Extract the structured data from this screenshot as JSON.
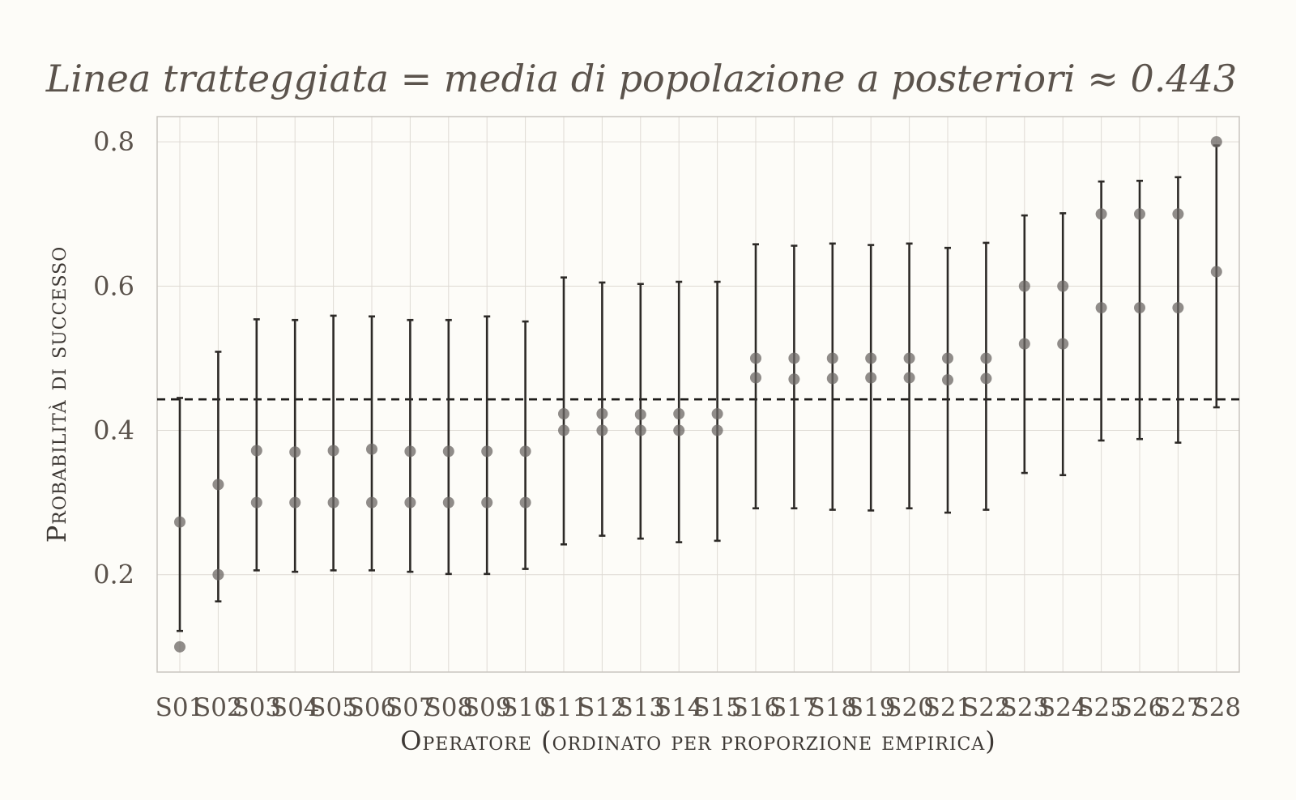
{
  "chart_data": {
    "type": "scatter",
    "title": "Linea tratteggiata = media di popolazione a posteriori ≈ 0.443",
    "xlabel": "Operatore (ordinato per proporzione empirica)",
    "ylabel": "Probabilità di successo",
    "ylim": [
      0.065,
      0.835
    ],
    "yticks": [
      0.2,
      0.4,
      0.6,
      0.8
    ],
    "ytick_labels": [
      "0.2",
      "0.4",
      "0.6",
      "0.8"
    ],
    "grid": true,
    "reference_line": 0.443,
    "categories": [
      "S01",
      "S02",
      "S03",
      "S04",
      "S05",
      "S06",
      "S07",
      "S08",
      "S09",
      "S10",
      "S11",
      "S12",
      "S13",
      "S14",
      "S15",
      "S16",
      "S17",
      "S18",
      "S19",
      "S20",
      "S21",
      "S22",
      "S23",
      "S24",
      "S25",
      "S26",
      "S27",
      "S28"
    ],
    "series": [
      {
        "values": [
          0.1,
          0.2,
          0.3,
          0.3,
          0.3,
          0.3,
          0.3,
          0.3,
          0.3,
          0.3,
          0.4,
          0.4,
          0.4,
          0.4,
          0.4,
          0.5,
          0.5,
          0.5,
          0.5,
          0.5,
          0.5,
          0.5,
          0.6,
          0.6,
          0.7,
          0.7,
          0.7,
          0.8
        ]
      },
      {
        "values": [
          0.273,
          0.325,
          0.372,
          0.37,
          0.372,
          0.374,
          0.371,
          0.371,
          0.371,
          0.371,
          0.423,
          0.423,
          0.422,
          0.423,
          0.423,
          0.473,
          0.471,
          0.472,
          0.473,
          0.473,
          0.47,
          0.472,
          0.52,
          0.52,
          0.57,
          0.57,
          0.57,
          0.62
        ]
      }
    ],
    "intervals": {
      "lower": [
        0.122,
        0.163,
        0.206,
        0.204,
        0.206,
        0.206,
        0.204,
        0.201,
        0.201,
        0.208,
        0.242,
        0.254,
        0.25,
        0.245,
        0.247,
        0.292,
        0.292,
        0.29,
        0.289,
        0.292,
        0.286,
        0.29,
        0.341,
        0.338,
        0.386,
        0.388,
        0.383,
        0.432
      ],
      "upper": [
        0.445,
        0.509,
        0.554,
        0.553,
        0.559,
        0.558,
        0.553,
        0.553,
        0.558,
        0.551,
        0.612,
        0.605,
        0.603,
        0.606,
        0.606,
        0.658,
        0.656,
        0.659,
        0.657,
        0.659,
        0.653,
        0.66,
        0.698,
        0.701,
        0.745,
        0.746,
        0.751,
        0.795
      ]
    }
  }
}
